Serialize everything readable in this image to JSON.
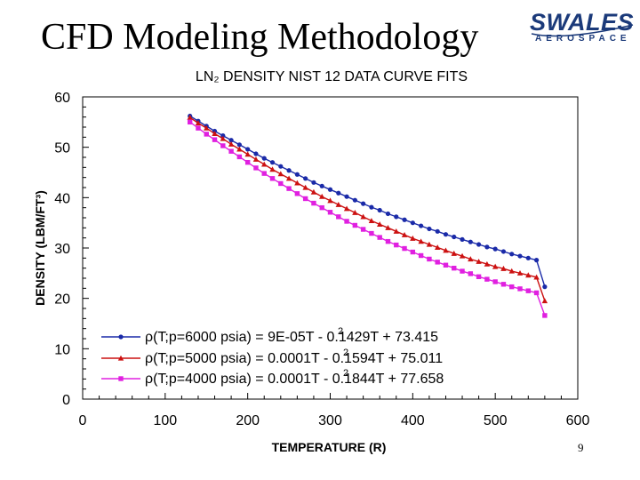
{
  "slide": {
    "title": "CFD Modeling Methodology",
    "page_number": "9"
  },
  "logo": {
    "main": "SWALES",
    "sub": "AEROSPACE"
  },
  "chart_data": {
    "type": "line",
    "title": "LN₂ DENSITY NIST 12 DATA CURVE FITS",
    "xlabel": "TEMPERATURE (R)",
    "ylabel": "DENSITY (LBM/FT³)",
    "xlim": [
      0,
      600
    ],
    "ylim": [
      0,
      60
    ],
    "x_ticks": [
      "0",
      "100",
      "200",
      "300",
      "400",
      "500",
      "600"
    ],
    "y_ticks": [
      "0",
      "10",
      "20",
      "30",
      "40",
      "50",
      "60"
    ],
    "grid": false,
    "legend_position": "bottom-left",
    "x": [
      130,
      140,
      150,
      160,
      170,
      180,
      190,
      200,
      210,
      220,
      230,
      240,
      250,
      260,
      270,
      280,
      290,
      300,
      310,
      320,
      330,
      340,
      350,
      360,
      370,
      380,
      390,
      400,
      410,
      420,
      430,
      440,
      450,
      460,
      470,
      480,
      490,
      500,
      510,
      520,
      530,
      540,
      550,
      560
    ],
    "series": [
      {
        "name": "ρ(T;p=6000 psia) = 9E-05T² - 0.1429T + 73.415",
        "legend_label": "ρ(T;p=6000 psia)  = 9E-05T  - 0.1429T + 73.415",
        "color": "#1a2aa8",
        "marker": "circle",
        "values": [
          56.2,
          55.2,
          54.2,
          53.2,
          52.3,
          51.4,
          50.5,
          49.6,
          48.7,
          47.8,
          47.0,
          46.2,
          45.4,
          44.6,
          43.8,
          43.0,
          42.3,
          41.6,
          40.9,
          40.2,
          39.5,
          38.8,
          38.1,
          37.5,
          36.8,
          36.2,
          35.6,
          35.0,
          34.4,
          33.8,
          33.3,
          32.7,
          32.2,
          31.7,
          31.2,
          30.7,
          30.2,
          29.8,
          29.3,
          28.8,
          28.4,
          28.0,
          27.6,
          22.3
        ]
      },
      {
        "name": "ρ(T;p=5000 psia) = 0.0001T² - 0.1594T + 75.011",
        "legend_label": "ρ(T;p=5000 psia) = 0.0001T  - 0.1594T + 75.011",
        "color": "#cc1111",
        "marker": "triangle",
        "values": [
          55.9,
          54.8,
          53.8,
          52.7,
          51.7,
          50.6,
          49.6,
          48.6,
          47.6,
          46.6,
          45.6,
          44.7,
          43.8,
          42.9,
          42.0,
          41.1,
          40.2,
          39.4,
          38.6,
          37.8,
          37.0,
          36.2,
          35.4,
          34.7,
          34.0,
          33.3,
          32.6,
          31.9,
          31.3,
          30.7,
          30.1,
          29.5,
          28.9,
          28.4,
          27.8,
          27.3,
          26.8,
          26.3,
          25.9,
          25.4,
          25.0,
          24.6,
          24.2,
          19.5
        ]
      },
      {
        "name": "ρ(T;p=4000 psia) = 0.0001T² - 0.1844T + 77.658",
        "legend_label": "ρ(T;p=4000 psia) = 0.0001T  - 0.1844T + 77.658",
        "color": "#e020e0",
        "marker": "square",
        "values": [
          55.0,
          53.8,
          52.6,
          51.5,
          50.3,
          49.2,
          48.1,
          47.0,
          45.9,
          44.8,
          43.8,
          42.8,
          41.8,
          40.8,
          39.8,
          38.9,
          38.0,
          37.1,
          36.2,
          35.3,
          34.5,
          33.7,
          32.9,
          32.1,
          31.3,
          30.6,
          29.9,
          29.2,
          28.5,
          27.8,
          27.2,
          26.6,
          26.0,
          25.4,
          24.9,
          24.3,
          23.8,
          23.3,
          22.8,
          22.3,
          21.9,
          21.5,
          21.1,
          16.6
        ]
      }
    ]
  }
}
